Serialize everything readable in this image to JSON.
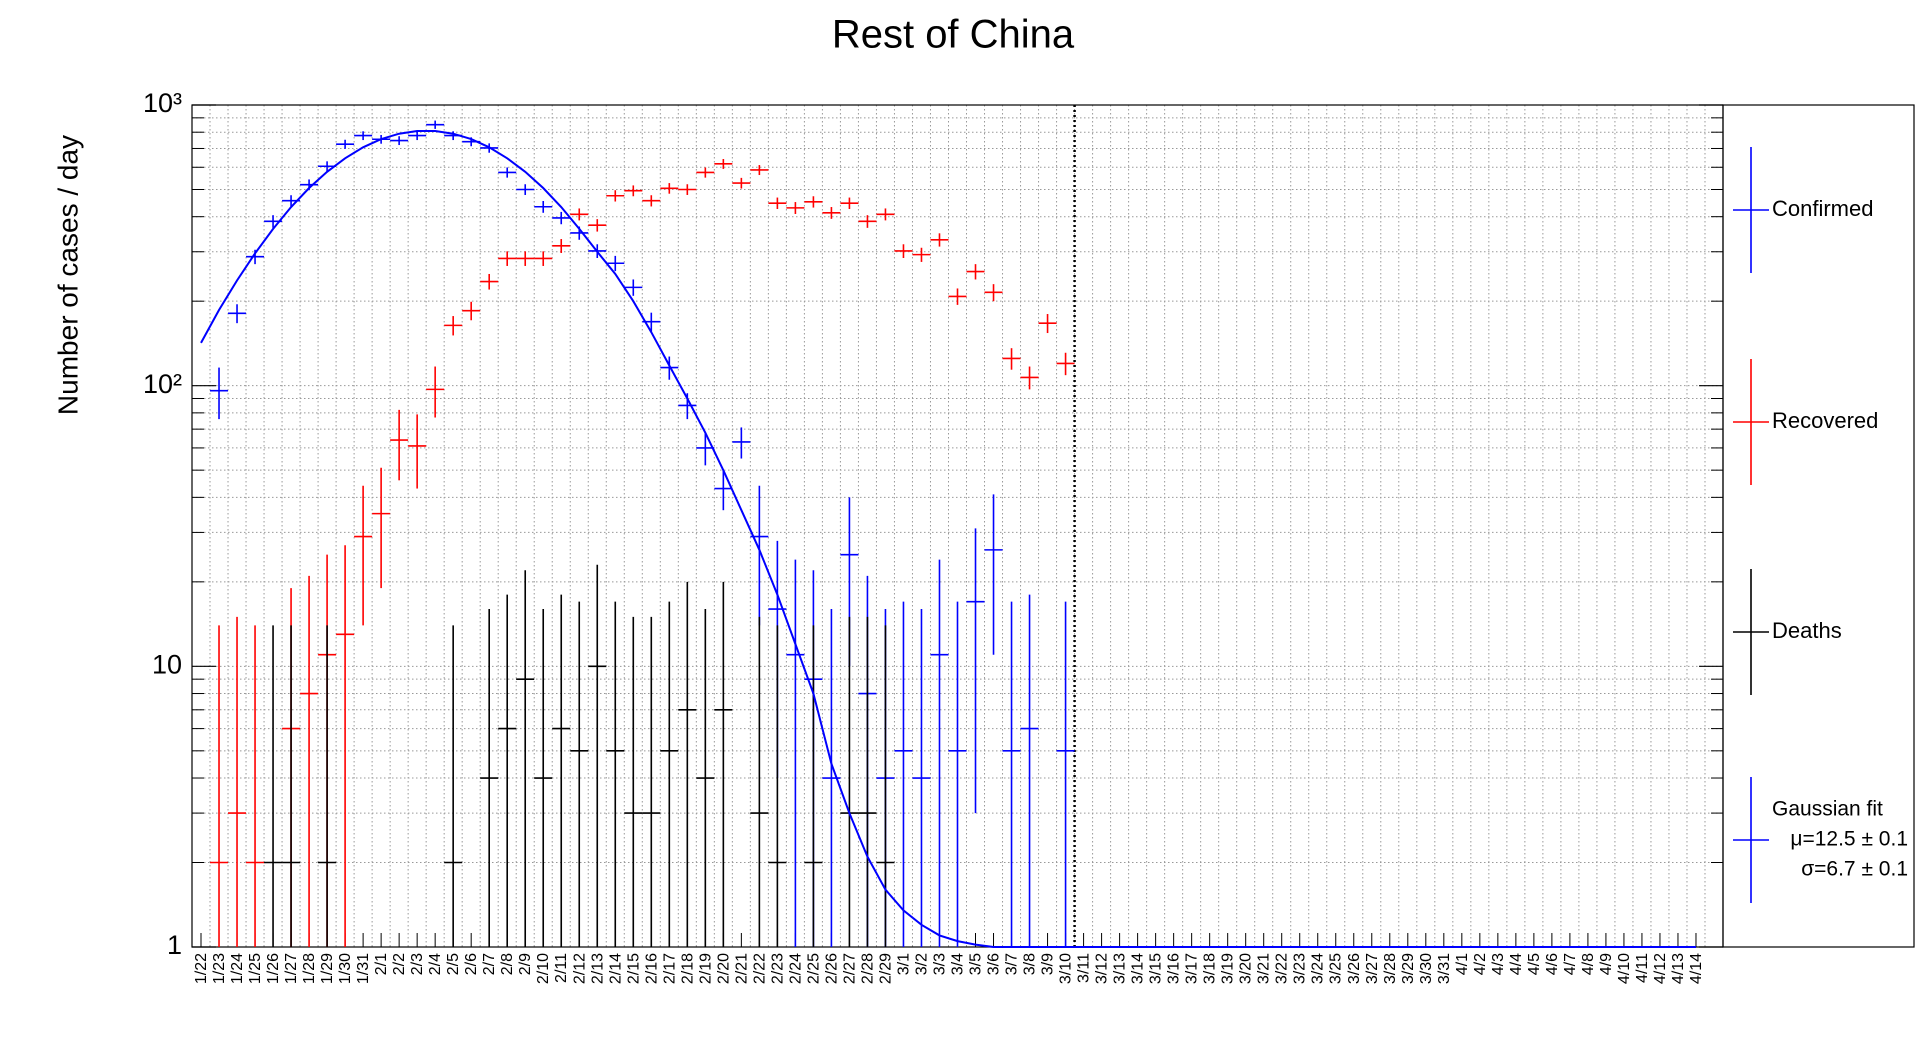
{
  "chart_data": {
    "type": "errorbar",
    "title": "Rest of China",
    "y_label": "Number of cases / day",
    "log_y": true,
    "grid": true,
    "ylim": [
      1,
      1000
    ],
    "yticks": [
      1,
      10,
      {
        "value": 100,
        "label": "10²"
      },
      {
        "value": 1000,
        "label": "10³"
      }
    ],
    "yminorticks": [
      2,
      3,
      4,
      5,
      6,
      7,
      8,
      9,
      20,
      30,
      40,
      50,
      60,
      70,
      80,
      90,
      200,
      300,
      400,
      500,
      600,
      700,
      800,
      900
    ],
    "vline_after_category": "3/10",
    "legend_position": "right",
    "categories": [
      "1/22",
      "1/23",
      "1/24",
      "1/25",
      "1/26",
      "1/27",
      "1/28",
      "1/29",
      "1/30",
      "1/31",
      "2/1",
      "2/2",
      "2/3",
      "2/4",
      "2/5",
      "2/6",
      "2/7",
      "2/8",
      "2/9",
      "2/10",
      "2/11",
      "2/12",
      "2/13",
      "2/14",
      "2/15",
      "2/16",
      "2/17",
      "2/18",
      "2/19",
      "2/20",
      "2/21",
      "2/22",
      "2/23",
      "2/24",
      "2/25",
      "2/26",
      "2/27",
      "2/28",
      "2/29",
      "3/1",
      "3/2",
      "3/3",
      "3/4",
      "3/5",
      "3/6",
      "3/7",
      "3/8",
      "3/9",
      "3/10",
      "3/11",
      "3/12",
      "3/13",
      "3/14",
      "3/15",
      "3/16",
      "3/17",
      "3/18",
      "3/19",
      "3/20",
      "3/21",
      "3/22",
      "3/23",
      "3/24",
      "3/25",
      "3/26",
      "3/27",
      "3/28",
      "3/29",
      "3/30",
      "3/31",
      "4/1",
      "4/2",
      "4/3",
      "4/4",
      "4/5",
      "4/6",
      "4/7",
      "4/8",
      "4/9",
      "4/10",
      "4/11",
      "4/12",
      "4/13",
      "4/14"
    ],
    "series": [
      {
        "name": "Confirmed",
        "color": "#0000ff",
        "style": "errorbar",
        "values": [
          null,
          96,
          181,
          288,
          385,
          456,
          520,
          605,
          725,
          778,
          755,
          747,
          778,
          851,
          778,
          740,
          703,
          575,
          500,
          434,
          396,
          350,
          302,
          273,
          224,
          169,
          116,
          85,
          60,
          43,
          63,
          29,
          16,
          11,
          9,
          4,
          25,
          8,
          4,
          5,
          4,
          11,
          5,
          17,
          26,
          5,
          6,
          null,
          5,
          null,
          null,
          null,
          null,
          null,
          null,
          null,
          null,
          null,
          null,
          null,
          null,
          null,
          null,
          null,
          null,
          null,
          null,
          null,
          null,
          null,
          null,
          null,
          null,
          null,
          null,
          null,
          null,
          null,
          null,
          null,
          null,
          null,
          null,
          null
        ],
        "errors": [
          null,
          20,
          14,
          17,
          20,
          21,
          23,
          25,
          27,
          28,
          27,
          27,
          28,
          29,
          28,
          27,
          27,
          24,
          22,
          21,
          20,
          19,
          17,
          17,
          15,
          13,
          11,
          9,
          8,
          7,
          8,
          15,
          12,
          13,
          13,
          12,
          15,
          13,
          12,
          12,
          12,
          13,
          12,
          14,
          15,
          12,
          12,
          null,
          12,
          null,
          null,
          null,
          null,
          null,
          null,
          null,
          null,
          null,
          null,
          null,
          null,
          null,
          null,
          null,
          null,
          null,
          null,
          null,
          null,
          null,
          null,
          null,
          null,
          null,
          null,
          null,
          null,
          null,
          null,
          null,
          null,
          null,
          null,
          null
        ]
      },
      {
        "name": "Recovered",
        "color": "#ff0000",
        "style": "errorbar",
        "values": [
          null,
          2,
          3,
          2,
          null,
          6,
          8,
          11,
          13,
          29,
          35,
          64,
          61,
          97,
          164,
          185,
          235,
          284,
          284,
          284,
          315,
          408,
          373,
          475,
          495,
          456,
          505,
          500,
          575,
          617,
          527,
          587,
          447,
          430,
          452,
          413,
          447,
          385,
          408,
          302,
          293,
          331,
          208,
          255,
          215,
          125,
          107,
          167,
          120,
          null,
          null,
          null,
          null,
          null,
          null,
          null,
          null,
          null,
          null,
          null,
          null,
          null,
          null,
          null,
          null,
          null,
          null,
          null,
          null,
          null,
          null,
          null,
          null,
          null,
          null,
          null,
          null,
          null,
          null,
          null,
          null,
          null,
          null,
          null
        ],
        "errors": [
          null,
          12,
          12,
          12,
          null,
          13,
          13,
          14,
          14,
          15,
          16,
          18,
          18,
          20,
          13,
          14,
          15,
          17,
          17,
          17,
          18,
          20,
          19,
          22,
          22,
          21,
          22,
          22,
          24,
          25,
          23,
          24,
          21,
          21,
          21,
          20,
          21,
          20,
          20,
          17,
          17,
          18,
          14,
          16,
          15,
          11,
          10,
          13,
          11,
          null,
          null,
          null,
          null,
          null,
          null,
          null,
          null,
          null,
          null,
          null,
          null,
          null,
          null,
          null,
          null,
          null,
          null,
          null,
          null,
          null,
          null,
          null,
          null,
          null,
          null,
          null,
          null,
          null,
          null,
          null,
          null,
          null,
          null,
          null
        ]
      },
      {
        "name": "Deaths",
        "color": "#000000",
        "style": "errorbar",
        "values": [
          null,
          null,
          null,
          null,
          2,
          2,
          null,
          2,
          null,
          null,
          null,
          null,
          null,
          null,
          2,
          null,
          4,
          6,
          9,
          4,
          6,
          5,
          10,
          5,
          3,
          3,
          5,
          7,
          4,
          7,
          null,
          3,
          2,
          null,
          2,
          null,
          3,
          3,
          2,
          null,
          null,
          null,
          null,
          null,
          null,
          null,
          null,
          null,
          null,
          null,
          null,
          null,
          null,
          null,
          null,
          null,
          null,
          null,
          null,
          null,
          null,
          null,
          null,
          null,
          null,
          null,
          null,
          null,
          null,
          null,
          null,
          null,
          null,
          null,
          null,
          null,
          null,
          null,
          null,
          null,
          null,
          null,
          null,
          null
        ],
        "errors": [
          null,
          null,
          null,
          null,
          12,
          12,
          null,
          12,
          null,
          null,
          null,
          null,
          null,
          null,
          12,
          null,
          12,
          12,
          13,
          12,
          12,
          12,
          13,
          12,
          12,
          12,
          12,
          13,
          12,
          13,
          null,
          12,
          12,
          null,
          12,
          null,
          12,
          12,
          12,
          null,
          null,
          null,
          null,
          null,
          null,
          null,
          null,
          null,
          null,
          null,
          null,
          null,
          null,
          null,
          null,
          null,
          null,
          null,
          null,
          null,
          null,
          null,
          null,
          null,
          null,
          null,
          null,
          null,
          null,
          null,
          null,
          null,
          null,
          null,
          null,
          null,
          null,
          null,
          null,
          null,
          null,
          null,
          null,
          null
        ]
      },
      {
        "name": "Gaussian fit",
        "color": "#0000ff",
        "style": "line",
        "legend_lines": [
          "μ=12.5 ± 0.1",
          "σ=6.7 ± 0.1"
        ],
        "values": [
          142,
          186,
          237,
          296,
          362,
          433,
          506,
          578,
          646,
          707,
          756,
          790,
          808,
          808,
          790,
          756,
          707,
          646,
          578,
          506,
          433,
          362,
          300,
          250,
          200,
          155,
          118,
          90,
          68,
          50,
          36,
          26,
          18,
          12,
          8,
          4.5,
          3,
          2.1,
          1.6,
          1.35,
          1.2,
          1.1,
          1.05,
          1.02,
          1,
          1,
          1,
          1,
          1,
          1,
          1,
          1,
          1,
          1,
          1,
          1,
          1,
          1,
          1,
          1,
          1,
          1,
          1,
          1,
          1,
          1,
          1,
          1,
          1,
          1,
          1,
          1,
          1,
          1,
          1,
          1,
          1,
          1,
          1,
          1,
          1,
          1,
          1,
          1
        ]
      }
    ]
  }
}
